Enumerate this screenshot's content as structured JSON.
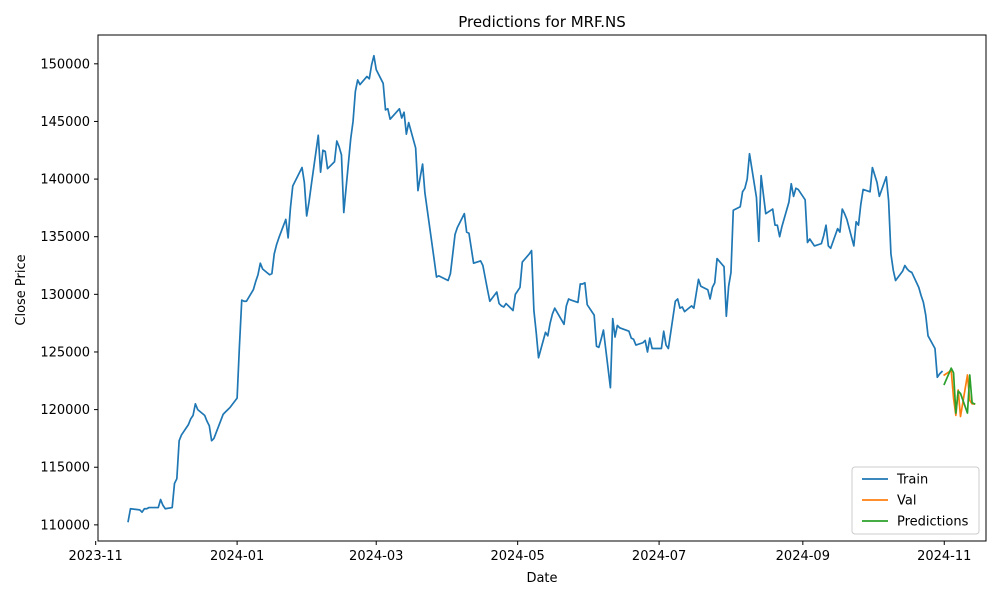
{
  "chart_data": {
    "type": "line",
    "title": "Predictions for MRF.NS",
    "xlabel": "Date",
    "ylabel": "Close Price",
    "xlim": [
      "2023-11-02",
      "2024-11-19"
    ],
    "ylim": [
      108600,
      152500
    ],
    "grid": false,
    "legend_position": "lower-right",
    "x_ticks": [
      "2023-11",
      "2024-01",
      "2024-03",
      "2024-05",
      "2024-07",
      "2024-09",
      "2024-11"
    ],
    "y_ticks": [
      110000,
      115000,
      120000,
      125000,
      130000,
      135000,
      140000,
      145000,
      150000
    ],
    "series": [
      {
        "name": "Train",
        "color": "#1f77b4",
        "x": [
          "2023-11-15",
          "2023-11-16",
          "2023-11-20",
          "2023-11-21",
          "2023-11-22",
          "2023-11-23",
          "2023-11-24",
          "2023-11-28",
          "2023-11-29",
          "2023-11-30",
          "2023-12-01",
          "2023-12-04",
          "2023-12-05",
          "2023-12-06",
          "2023-12-07",
          "2023-12-08",
          "2023-12-11",
          "2023-12-12",
          "2023-12-13",
          "2023-12-14",
          "2023-12-15",
          "2023-12-18",
          "2023-12-19",
          "2023-12-20",
          "2023-12-21",
          "2023-12-22",
          "2023-12-26",
          "2023-12-27",
          "2023-12-28",
          "2023-12-29",
          "2024-01-01",
          "2024-01-02",
          "2024-01-03",
          "2024-01-04",
          "2024-01-05",
          "2024-01-08",
          "2024-01-09",
          "2024-01-10",
          "2024-01-11",
          "2024-01-12",
          "2024-01-15",
          "2024-01-16",
          "2024-01-17",
          "2024-01-18",
          "2024-01-19",
          "2024-01-22",
          "2024-01-23",
          "2024-01-24",
          "2024-01-25",
          "2024-01-29",
          "2024-01-30",
          "2024-01-31",
          "2024-02-01",
          "2024-02-02",
          "2024-02-05",
          "2024-02-06",
          "2024-02-07",
          "2024-02-08",
          "2024-02-09",
          "2024-02-12",
          "2024-02-13",
          "2024-02-14",
          "2024-02-15",
          "2024-02-16",
          "2024-02-19",
          "2024-02-20",
          "2024-02-21",
          "2024-02-22",
          "2024-02-23",
          "2024-02-26",
          "2024-02-27",
          "2024-02-28",
          "2024-02-29",
          "2024-03-01",
          "2024-03-04",
          "2024-03-05",
          "2024-03-06",
          "2024-03-07",
          "2024-03-11",
          "2024-03-12",
          "2024-03-13",
          "2024-03-14",
          "2024-03-15",
          "2024-03-18",
          "2024-03-19",
          "2024-03-20",
          "2024-03-21",
          "2024-03-22",
          "2024-03-26",
          "2024-03-27",
          "2024-03-28",
          "2024-04-01",
          "2024-04-02",
          "2024-04-03",
          "2024-04-04",
          "2024-04-05",
          "2024-04-08",
          "2024-04-09",
          "2024-04-10",
          "2024-04-12",
          "2024-04-15",
          "2024-04-16",
          "2024-04-18",
          "2024-04-19",
          "2024-04-22",
          "2024-04-23",
          "2024-04-24",
          "2024-04-25",
          "2024-04-26",
          "2024-04-29",
          "2024-04-30",
          "2024-05-02",
          "2024-05-03",
          "2024-05-06",
          "2024-05-07",
          "2024-05-08",
          "2024-05-09",
          "2024-05-10",
          "2024-05-13",
          "2024-05-14",
          "2024-05-15",
          "2024-05-16",
          "2024-05-17",
          "2024-05-21",
          "2024-05-22",
          "2024-05-23",
          "2024-05-24",
          "2024-05-27",
          "2024-05-28",
          "2024-05-29",
          "2024-05-30",
          "2024-05-31",
          "2024-06-03",
          "2024-06-04",
          "2024-06-05",
          "2024-06-06",
          "2024-06-07",
          "2024-06-10",
          "2024-06-11",
          "2024-06-12",
          "2024-06-13",
          "2024-06-14",
          "2024-06-18",
          "2024-06-19",
          "2024-06-20",
          "2024-06-21",
          "2024-06-24",
          "2024-06-25",
          "2024-06-26",
          "2024-06-27",
          "2024-06-28",
          "2024-07-01",
          "2024-07-02",
          "2024-07-03",
          "2024-07-04",
          "2024-07-05",
          "2024-07-08",
          "2024-07-09",
          "2024-07-10",
          "2024-07-11",
          "2024-07-12",
          "2024-07-15",
          "2024-07-16",
          "2024-07-18",
          "2024-07-19",
          "2024-07-22",
          "2024-07-23",
          "2024-07-24",
          "2024-07-25",
          "2024-07-26",
          "2024-07-29",
          "2024-07-30",
          "2024-07-31",
          "2024-08-01",
          "2024-08-02",
          "2024-08-05",
          "2024-08-06",
          "2024-08-07",
          "2024-08-08",
          "2024-08-09",
          "2024-08-12",
          "2024-08-13",
          "2024-08-14",
          "2024-08-16",
          "2024-08-19",
          "2024-08-20",
          "2024-08-21",
          "2024-08-22",
          "2024-08-23",
          "2024-08-26",
          "2024-08-27",
          "2024-08-28",
          "2024-08-29",
          "2024-08-30",
          "2024-09-02",
          "2024-09-03",
          "2024-09-04",
          "2024-09-05",
          "2024-09-06",
          "2024-09-09",
          "2024-09-10",
          "2024-09-11",
          "2024-09-12",
          "2024-09-13",
          "2024-09-16",
          "2024-09-17",
          "2024-09-18",
          "2024-09-19",
          "2024-09-20",
          "2024-09-23",
          "2024-09-24",
          "2024-09-25",
          "2024-09-26",
          "2024-09-27",
          "2024-09-30",
          "2024-10-01",
          "2024-10-03",
          "2024-10-04",
          "2024-10-07",
          "2024-10-08",
          "2024-10-09",
          "2024-10-10",
          "2024-10-11",
          "2024-10-14",
          "2024-10-15",
          "2024-10-16",
          "2024-10-17",
          "2024-10-18",
          "2024-10-21",
          "2024-10-22",
          "2024-10-23",
          "2024-10-24",
          "2024-10-25",
          "2024-10-28",
          "2024-10-29",
          "2024-10-30",
          "2024-10-31"
        ],
        "y": [
          110300,
          111400,
          111300,
          111100,
          111400,
          111400,
          111500,
          111500,
          112200,
          111700,
          111400,
          111500,
          113600,
          114000,
          117300,
          117800,
          118700,
          119200,
          119500,
          120500,
          120000,
          119500,
          119000,
          118600,
          117300,
          117500,
          119600,
          119800,
          120000,
          120200,
          121000,
          125500,
          129500,
          129400,
          129400,
          130400,
          131100,
          131700,
          132700,
          132200,
          131700,
          131800,
          133500,
          134300,
          134900,
          136500,
          134900,
          137500,
          139400,
          141000,
          139700,
          136800,
          138000,
          139500,
          143800,
          140600,
          142500,
          142400,
          140900,
          141500,
          143300,
          142800,
          142100,
          137100,
          143500,
          145000,
          147600,
          148600,
          148200,
          148900,
          148700,
          149900,
          150700,
          149500,
          148300,
          146000,
          146100,
          145200,
          146100,
          145300,
          145800,
          143900,
          144900,
          142700,
          139000,
          140200,
          141300,
          138800,
          133000,
          131500,
          131600,
          131200,
          131800,
          133500,
          135200,
          135800,
          137000,
          135400,
          135300,
          132700,
          132900,
          132500,
          130400,
          129400,
          130200,
          129200,
          129000,
          128900,
          129200,
          128600,
          130000,
          130600,
          132800,
          133500,
          133800,
          128600,
          126700,
          124500,
          126700,
          126400,
          127500,
          128300,
          128800,
          127400,
          129000,
          129600,
          129500,
          129300,
          130900,
          130900,
          131000,
          129100,
          128200,
          125500,
          125400,
          126100,
          126900,
          121900,
          127900,
          126300,
          127300,
          127100,
          126800,
          126200,
          126100,
          125600,
          125800,
          126000,
          125000,
          126200,
          125300,
          125300,
          125300,
          126800,
          125600,
          125300,
          129400,
          129600,
          128800,
          128900,
          128500,
          129000,
          128800,
          131300,
          130700,
          130400,
          129600,
          130600,
          131000,
          133100,
          132400,
          128100,
          130700,
          131900,
          137300,
          137600,
          138900,
          139200,
          140000,
          142200,
          138400,
          134600,
          140300,
          137000,
          137400,
          136000,
          136000,
          135000,
          135900,
          138000,
          139600,
          138500,
          139200,
          139100,
          138200,
          134500,
          134800,
          134500,
          134200,
          134400,
          135100,
          136000,
          134200,
          134000,
          135700,
          135400,
          137400,
          137000,
          136500,
          134200,
          136300,
          136000,
          137800,
          139100,
          138900,
          141000,
          139700,
          138500,
          140200,
          138100,
          133500,
          132100,
          131200,
          132000,
          132500,
          132200,
          132000,
          131900,
          130600,
          129900,
          129300,
          128200,
          126400,
          125300,
          122800,
          123100,
          123300
        ]
      },
      {
        "name": "Val",
        "color": "#ff7f0e",
        "x": [
          "2024-11-01",
          "2024-11-04",
          "2024-11-05",
          "2024-11-06",
          "2024-11-07",
          "2024-11-08",
          "2024-11-11",
          "2024-11-12",
          "2024-11-13",
          "2024-11-14"
        ],
        "y": [
          123000,
          123400,
          121000,
          119500,
          121700,
          119400,
          123000,
          120800,
          120500,
          120500
        ]
      },
      {
        "name": "Predictions",
        "color": "#2ca02c",
        "x": [
          "2024-11-01",
          "2024-11-04",
          "2024-11-05",
          "2024-11-06",
          "2024-11-07",
          "2024-11-08",
          "2024-11-11",
          "2024-11-12",
          "2024-11-13",
          "2024-11-14"
        ],
        "y": [
          122200,
          123600,
          123200,
          119700,
          121600,
          121400,
          119700,
          123000,
          120600,
          120500
        ]
      }
    ]
  }
}
